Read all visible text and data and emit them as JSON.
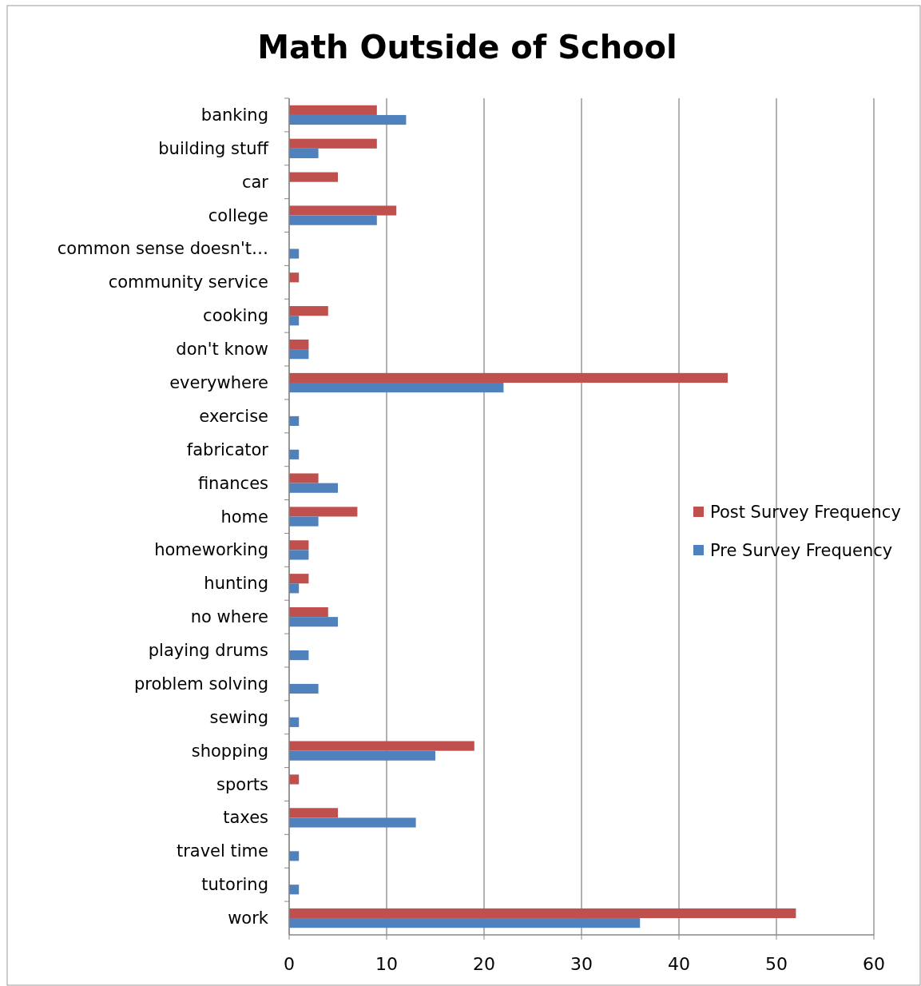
{
  "chart_data": {
    "type": "bar",
    "orientation": "horizontal",
    "title": "Math Outside of School",
    "categories": [
      "banking",
      "building stuff",
      "car",
      "college",
      "common sense doesn't…",
      "community service",
      "cooking",
      "don't know",
      "everywhere",
      "exercise",
      "fabricator",
      "finances",
      "home",
      "homeworking",
      "hunting",
      "no where",
      "playing drums",
      "problem solving",
      "sewing",
      "shopping",
      "sports",
      "taxes",
      "travel time",
      "tutoring",
      "work"
    ],
    "series": [
      {
        "name": "Post Survey Frequency",
        "color": "#c0504d",
        "values": [
          9,
          9,
          5,
          11,
          null,
          1,
          4,
          2,
          45,
          null,
          null,
          3,
          7,
          2,
          2,
          4,
          null,
          null,
          null,
          19,
          1,
          5,
          null,
          null,
          52
        ]
      },
      {
        "name": "Pre Survey Frequency",
        "color": "#4f81bd",
        "values": [
          12,
          3,
          null,
          9,
          1,
          null,
          1,
          2,
          22,
          1,
          1,
          5,
          3,
          2,
          1,
          5,
          2,
          3,
          1,
          15,
          null,
          13,
          1,
          1,
          36
        ]
      }
    ],
    "xlim": [
      0,
      60
    ],
    "xticks": [
      0,
      10,
      20,
      30,
      40,
      50,
      60
    ],
    "grid": "x",
    "legend": "right"
  }
}
